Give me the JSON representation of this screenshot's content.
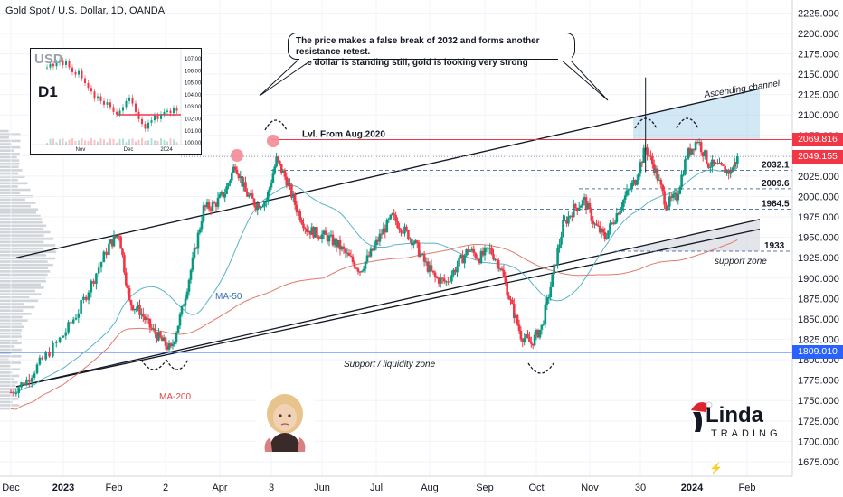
{
  "symbol_title": "Gold Spot / U.S. Dollar, 1D, OANDA",
  "callout": {
    "line1": "The price makes a false break of 2032 and forms another resistance retest.",
    "line2": "The dollar is standing still, gold is looking very strong"
  },
  "inset": {
    "title": "USD",
    "timeframe": "D1",
    "yticks": [
      "107.00",
      "106.00",
      "105.00",
      "104.00",
      "103.00",
      "102.00",
      "101.00",
      "100.00"
    ],
    "xticks": [
      "Nov",
      "Dec",
      "2024"
    ]
  },
  "logo": {
    "main": "Linda",
    "sub": "TRADING"
  },
  "price_tags": [
    {
      "label": "2069.816",
      "value": 2069.816,
      "color": "#f23645"
    },
    {
      "label": "2049.155",
      "value": 2049.155,
      "color": "#f23645"
    },
    {
      "label": "1809.010",
      "value": 1809.01,
      "color": "#2962ff"
    }
  ],
  "chart_data": {
    "type": "candlestick",
    "yaxis": {
      "range": [
        1665,
        2232
      ],
      "ticks": [
        "2225.000",
        "2200.000",
        "2175.000",
        "2150.000",
        "2125.000",
        "2100.000",
        "2075.000",
        "2050.000",
        "2025.000",
        "2000.000",
        "1975.000",
        "1950.000",
        "1925.000",
        "1900.000",
        "1875.000",
        "1850.000",
        "1825.000",
        "1800.000",
        "1775.000",
        "1750.000",
        "1725.000",
        "1700.000",
        "1675.000"
      ]
    },
    "xaxis": {
      "ticks": [
        {
          "label": "Dec",
          "x": 0
        },
        {
          "label": "2023",
          "x": 1
        },
        {
          "label": "Feb",
          "x": 2
        },
        {
          "label": "2",
          "x": 3
        },
        {
          "label": "Apr",
          "x": 4
        },
        {
          "label": "3",
          "x": 5
        },
        {
          "label": "Jun",
          "x": 6
        },
        {
          "label": "Jul",
          "x": 7
        },
        {
          "label": "Aug",
          "x": 8
        },
        {
          "label": "Sep",
          "x": 9
        },
        {
          "label": "Oct",
          "x": 10
        },
        {
          "label": "Nov",
          "x": 11
        },
        {
          "label": "30",
          "x": 12
        },
        {
          "label": "2024",
          "x": 13
        },
        {
          "label": "Feb",
          "x": 14
        }
      ]
    },
    "levels": [
      {
        "label": "Lvl. From Aug.2020",
        "value": 2069.8
      },
      {
        "label": "2032.1",
        "value": 2032.1
      },
      {
        "label": "2009.6",
        "value": 2009.6
      },
      {
        "label": "1984.5",
        "value": 1984.5
      },
      {
        "label": "1933",
        "value": 1933
      }
    ],
    "annotations": {
      "ascending_channel": "Ascending channel",
      "support_zone": "support zone",
      "support_liquidity": "Support / liquidity zone",
      "ma50": "MA-50",
      "ma200": "MA-200"
    },
    "price_path": [
      [
        0,
        1760
      ],
      [
        0.3,
        1775
      ],
      [
        0.6,
        1800
      ],
      [
        1,
        1830
      ],
      [
        1.3,
        1860
      ],
      [
        1.6,
        1900
      ],
      [
        1.9,
        1940
      ],
      [
        2.1,
        1955
      ],
      [
        2.3,
        1870
      ],
      [
        2.5,
        1860
      ],
      [
        2.7,
        1840
      ],
      [
        2.9,
        1825
      ],
      [
        3.1,
        1812
      ],
      [
        3.3,
        1860
      ],
      [
        3.5,
        1920
      ],
      [
        3.7,
        1985
      ],
      [
        3.9,
        1990
      ],
      [
        4.1,
        2005
      ],
      [
        4.3,
        2040
      ],
      [
        4.5,
        2005
      ],
      [
        4.7,
        1990
      ],
      [
        4.9,
        1995
      ],
      [
        5.1,
        2045
      ],
      [
        5.3,
        2020
      ],
      [
        5.5,
        1985
      ],
      [
        5.7,
        1960
      ],
      [
        5.9,
        1955
      ],
      [
        6.1,
        1950
      ],
      [
        6.3,
        1940
      ],
      [
        6.5,
        1925
      ],
      [
        6.7,
        1910
      ],
      [
        6.9,
        1930
      ],
      [
        7.1,
        1955
      ],
      [
        7.3,
        1975
      ],
      [
        7.5,
        1960
      ],
      [
        7.7,
        1945
      ],
      [
        7.9,
        1920
      ],
      [
        8.1,
        1900
      ],
      [
        8.3,
        1895
      ],
      [
        8.5,
        1915
      ],
      [
        8.7,
        1935
      ],
      [
        8.9,
        1925
      ],
      [
        9.1,
        1935
      ],
      [
        9.3,
        1915
      ],
      [
        9.5,
        1870
      ],
      [
        9.7,
        1830
      ],
      [
        9.9,
        1820
      ],
      [
        10.1,
        1840
      ],
      [
        10.3,
        1900
      ],
      [
        10.5,
        1965
      ],
      [
        10.7,
        1985
      ],
      [
        10.9,
        1995
      ],
      [
        11.1,
        1965
      ],
      [
        11.3,
        1950
      ],
      [
        11.5,
        1975
      ],
      [
        11.7,
        2000
      ],
      [
        11.9,
        2020
      ],
      [
        12.1,
        2060
      ],
      [
        12.3,
        2030
      ],
      [
        12.5,
        1990
      ],
      [
        12.7,
        2000
      ],
      [
        12.9,
        2050
      ],
      [
        13.1,
        2070
      ],
      [
        13.3,
        2040
      ],
      [
        13.5,
        2035
      ],
      [
        13.7,
        2030
      ],
      [
        13.85,
        2050
      ]
    ]
  }
}
